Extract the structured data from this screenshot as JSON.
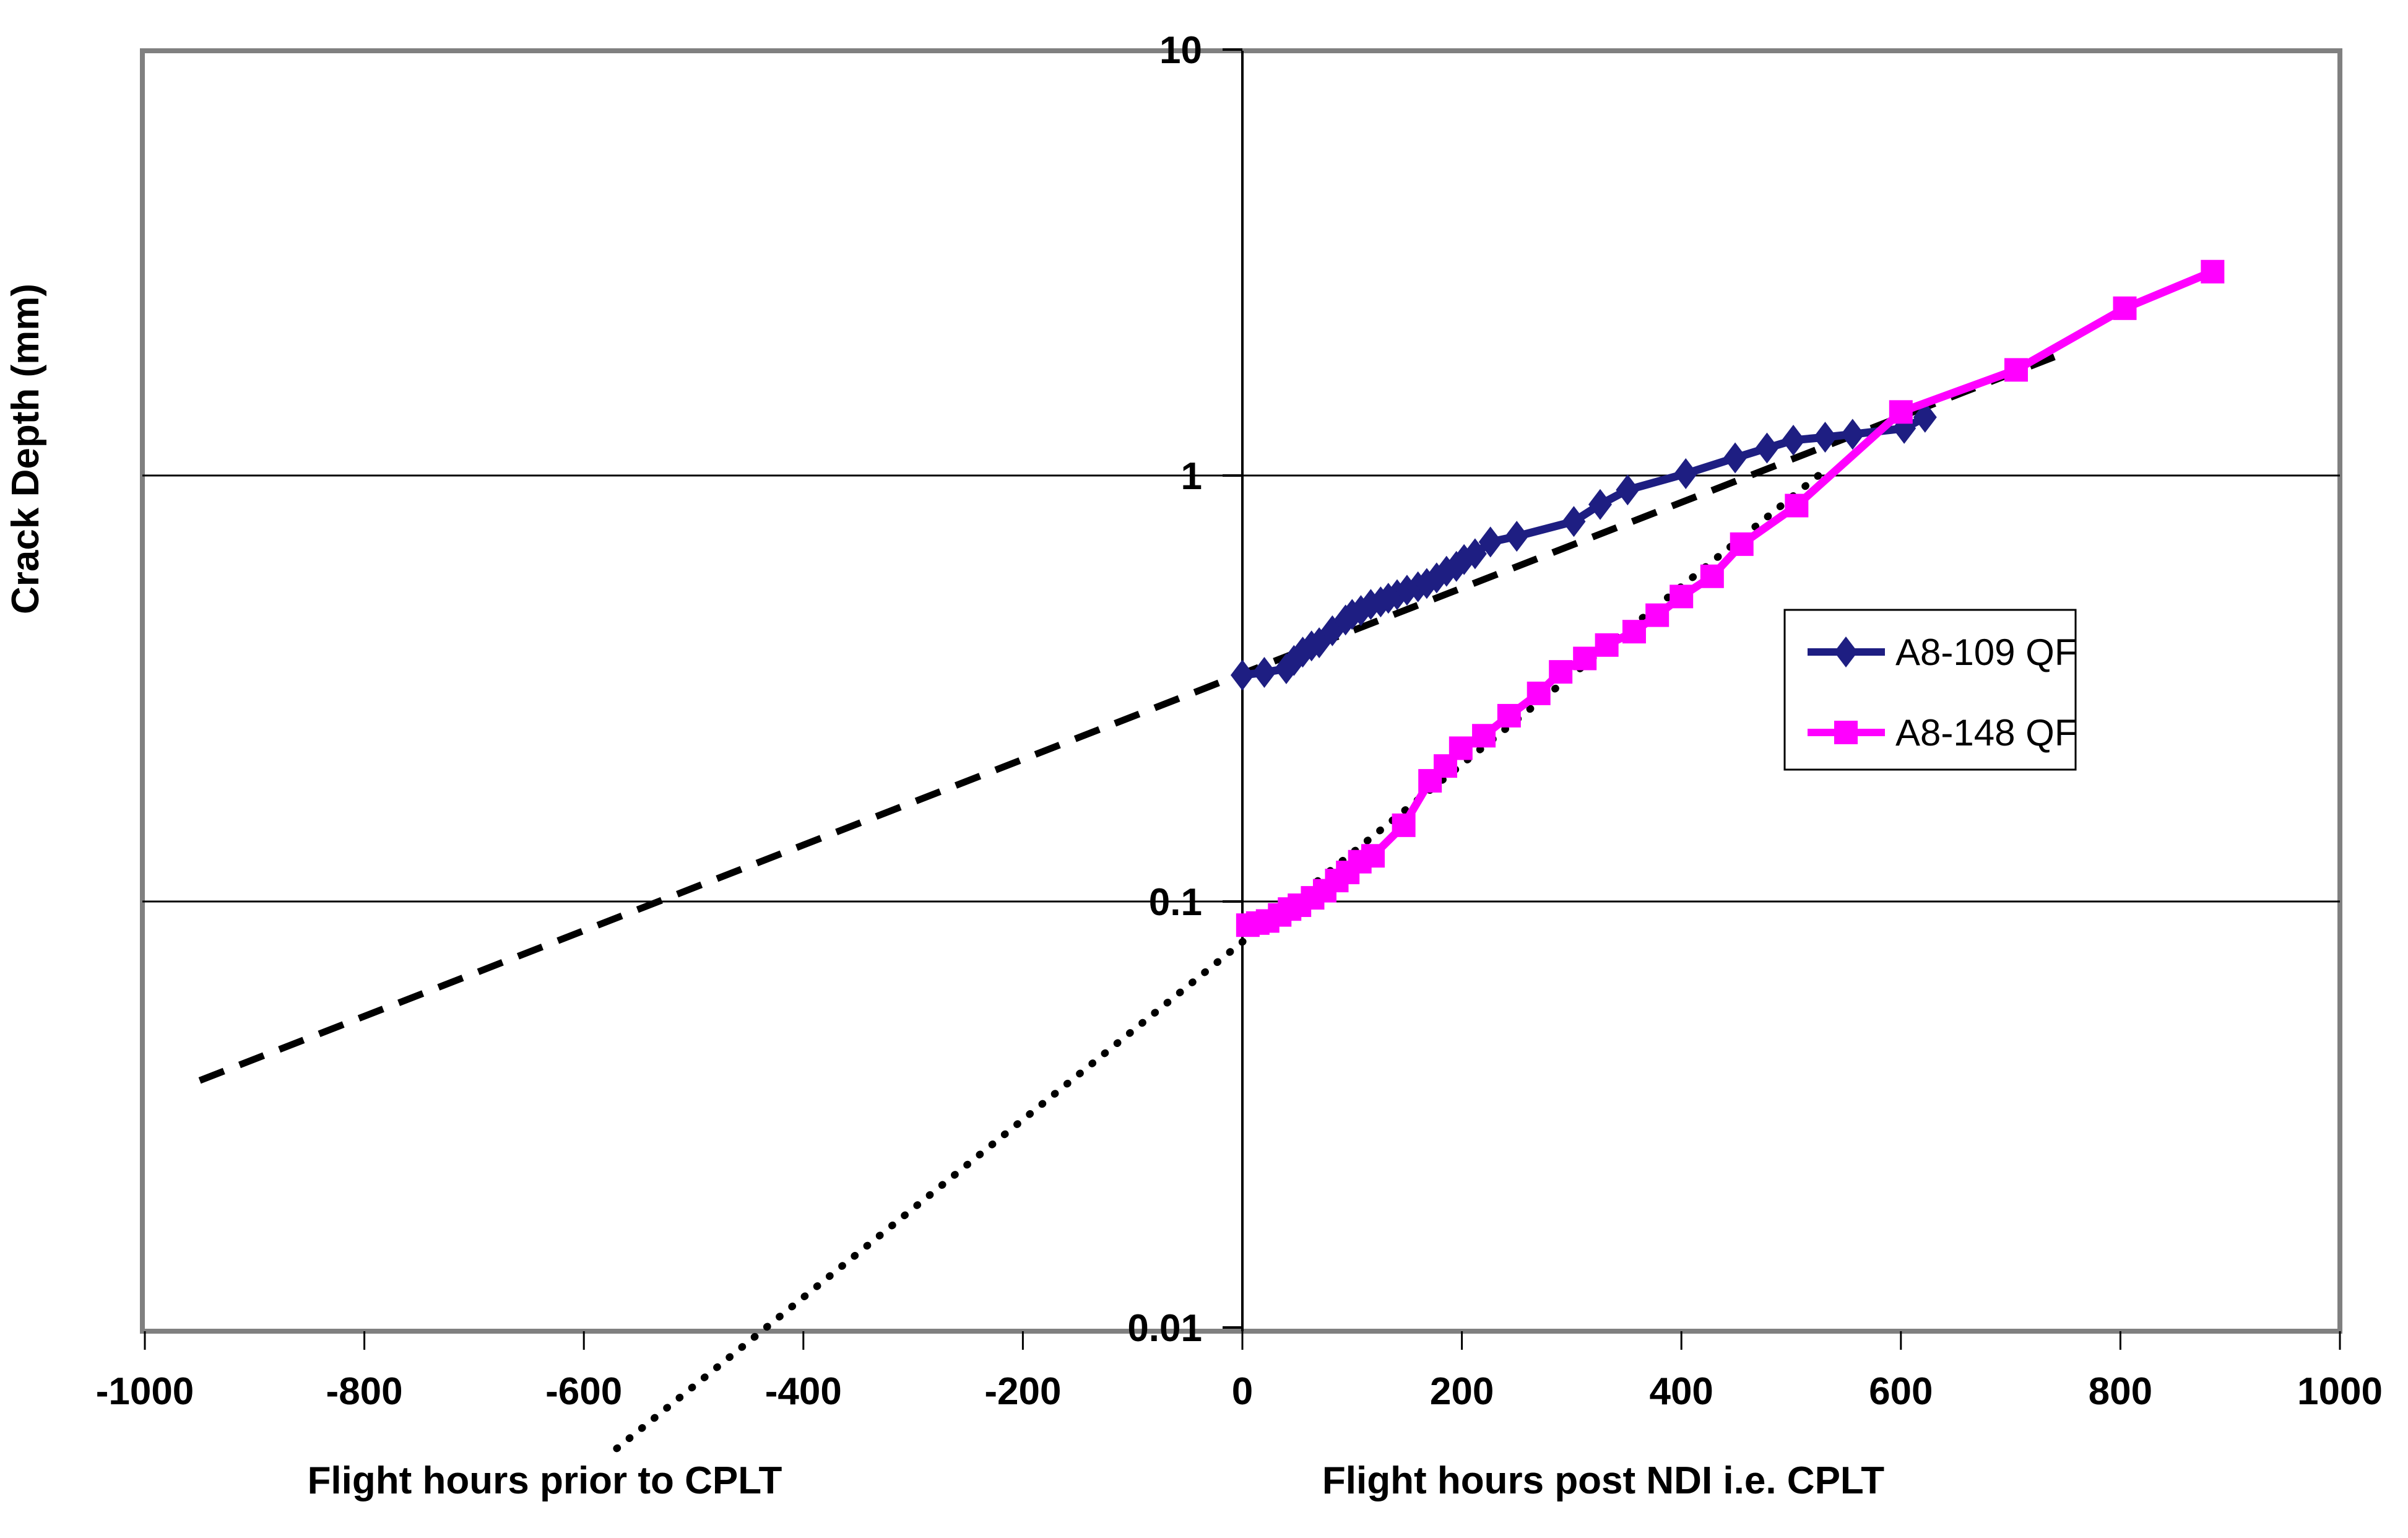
{
  "chart_data": {
    "type": "line",
    "title": "",
    "ylabel": "Crack Depth (mm)",
    "xlabel_left": "Flight  hours prior to CPLT",
    "xlabel_right": "Flight hours post NDI i.e. CPLT",
    "x_axis": {
      "min": -1000,
      "max": 1000,
      "tick_values": [
        -1000,
        -800,
        -600,
        -400,
        -200,
        0,
        200,
        400,
        600,
        800,
        1000
      ],
      "tick_labels": [
        "-1000",
        "-800",
        "-600",
        "-400",
        "-200",
        "0",
        "200",
        "400",
        "600",
        "800",
        "1000"
      ]
    },
    "y_axis": {
      "scale": "log",
      "min": 0.01,
      "max": 10,
      "tick_values": [
        10,
        1,
        0.1,
        0.01
      ],
      "tick_labels": [
        "10",
        "1",
        "0.1",
        "0.01"
      ]
    },
    "grid": {
      "horizontal_at": [
        1,
        0.1
      ]
    },
    "series": [
      {
        "name": "A8-109 QF",
        "color": "#1E1E82",
        "marker": "diamond",
        "points": [
          [
            0,
            0.34
          ],
          [
            20,
            0.345
          ],
          [
            40,
            0.352
          ],
          [
            47,
            0.368
          ],
          [
            55,
            0.385
          ],
          [
            63,
            0.398
          ],
          [
            70,
            0.405
          ],
          [
            82,
            0.432
          ],
          [
            94,
            0.458
          ],
          [
            100,
            0.472
          ],
          [
            108,
            0.482
          ],
          [
            117,
            0.498
          ],
          [
            126,
            0.505
          ],
          [
            133,
            0.515
          ],
          [
            141,
            0.525
          ],
          [
            150,
            0.538
          ],
          [
            160,
            0.548
          ],
          [
            168,
            0.558
          ],
          [
            177,
            0.575
          ],
          [
            186,
            0.596
          ],
          [
            195,
            0.612
          ],
          [
            202,
            0.635
          ],
          [
            212,
            0.655
          ],
          [
            226,
            0.698
          ],
          [
            250,
            0.72
          ],
          [
            302,
            0.78
          ],
          [
            326,
            0.855
          ],
          [
            351,
            0.925
          ],
          [
            404,
            1.01
          ],
          [
            449,
            1.1
          ],
          [
            478,
            1.16
          ],
          [
            502,
            1.21
          ],
          [
            531,
            1.23
          ],
          [
            556,
            1.25
          ],
          [
            603,
            1.29
          ],
          [
            622,
            1.37
          ]
        ]
      },
      {
        "name": "A8-148 QF",
        "color": "#FF00FF",
        "marker": "square",
        "points": [
          [
            5,
            0.088
          ],
          [
            14,
            0.089
          ],
          [
            23,
            0.09
          ],
          [
            34,
            0.093
          ],
          [
            43,
            0.096
          ],
          [
            52,
            0.098
          ],
          [
            64,
            0.102
          ],
          [
            75,
            0.106
          ],
          [
            86,
            0.112
          ],
          [
            96,
            0.117
          ],
          [
            107,
            0.124
          ],
          [
            119,
            0.128
          ],
          [
            147,
            0.151
          ],
          [
            171,
            0.192
          ],
          [
            185,
            0.208
          ],
          [
            199,
            0.229
          ],
          [
            220,
            0.245
          ],
          [
            243,
            0.273
          ],
          [
            270,
            0.308
          ],
          [
            290,
            0.346
          ],
          [
            312,
            0.372
          ],
          [
            332,
            0.4
          ],
          [
            357,
            0.43
          ],
          [
            378,
            0.47
          ],
          [
            400,
            0.52
          ],
          [
            428,
            0.58
          ],
          [
            455,
            0.69
          ],
          [
            505,
            0.85
          ],
          [
            600,
            1.41
          ],
          [
            705,
            1.77
          ],
          [
            804,
            2.47
          ],
          [
            884,
            3.01
          ]
        ]
      }
    ],
    "reference_lines": [
      {
        "name": "dashed extrapolation through A8-109 data",
        "style": "dashed",
        "color": "#000000",
        "from": [
          -950,
          0.038
        ],
        "to": [
          740,
          1.9
        ]
      },
      {
        "name": "dotted extrapolation through A8-148 data",
        "style": "dotted",
        "color": "#000000",
        "from": [
          -570,
          0.0052
        ],
        "to": [
          535,
          1.05
        ]
      }
    ],
    "legend": {
      "position": "middle-right",
      "entries": [
        "A8-109 QF",
        "A8-148 QF"
      ]
    },
    "colors": {
      "plot_border": "#808080",
      "axis_line": "#000000",
      "gridline": "#000000"
    }
  }
}
